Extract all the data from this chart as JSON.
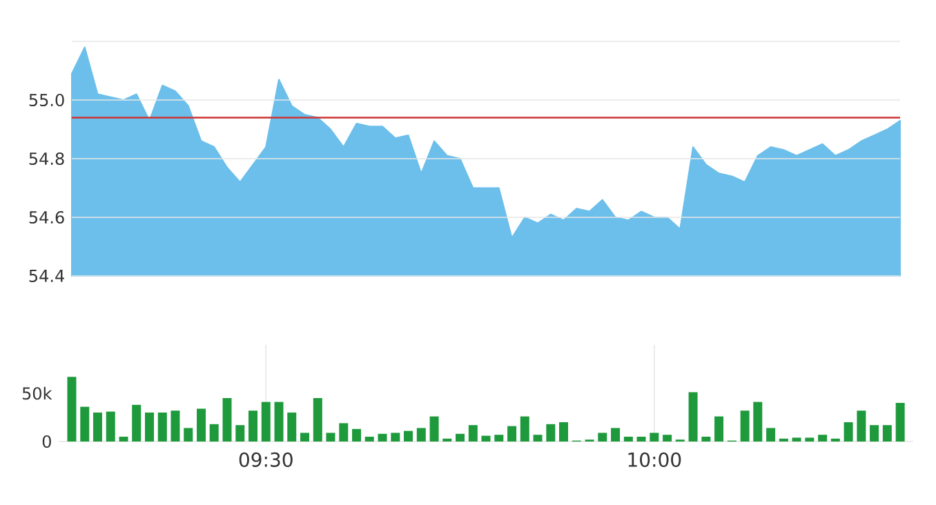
{
  "chart_data": [
    {
      "type": "area",
      "categories": [
        null,
        null,
        null,
        null,
        null,
        null,
        null,
        null,
        null,
        null,
        null,
        null,
        null,
        null,
        null,
        null,
        null,
        null,
        null,
        null,
        null,
        null,
        null,
        null,
        null,
        null,
        null,
        null,
        null,
        null,
        null,
        null,
        null,
        null,
        null,
        null,
        null,
        null,
        null,
        null,
        null,
        null,
        null,
        null,
        null,
        null,
        null,
        null,
        null,
        null,
        null,
        null,
        null,
        null,
        null,
        null,
        null,
        null,
        null,
        null,
        null,
        null,
        null,
        null,
        null
      ],
      "series": [
        {
          "color": "#6cbfeb",
          "values": [
            55.09,
            55.18,
            55.02,
            55.01,
            55.0,
            55.02,
            54.93,
            55.05,
            55.03,
            54.98,
            54.86,
            54.84,
            54.77,
            54.72,
            54.78,
            54.84,
            55.07,
            54.98,
            54.95,
            54.94,
            54.9,
            54.84,
            54.92,
            54.91,
            54.91,
            54.87,
            54.88,
            54.75,
            54.86,
            54.81,
            54.8,
            54.7,
            54.7,
            54.7,
            54.53,
            54.6,
            54.58,
            54.61,
            54.59,
            54.63,
            54.62,
            54.66,
            54.6,
            54.59,
            54.62,
            54.6,
            54.6,
            54.56,
            54.84,
            54.78,
            54.75,
            54.74,
            54.72,
            54.81,
            54.84,
            54.83,
            54.81,
            54.83,
            54.85,
            54.81,
            54.83,
            54.86,
            54.88,
            54.9,
            54.93
          ]
        }
      ],
      "ylim": [
        54.4,
        55.2
      ],
      "yticks": [
        54.4,
        54.6,
        54.8,
        {
          "value": 55,
          "label": "55.0"
        },
        {
          "value": 55.2,
          "label": null
        }
      ],
      "ref_lines": [
        {
          "axis": "y",
          "value": 54.94,
          "color": "#cc3333"
        }
      ],
      "grid": "y",
      "tick_labels": "y"
    },
    {
      "type": "bar",
      "x": [
        9.25,
        9.2667,
        9.2833,
        9.3,
        9.3167,
        9.3333,
        9.35,
        9.3667,
        9.3833,
        9.4,
        9.4167,
        9.4333,
        9.45,
        9.4667,
        9.4833,
        9.5,
        9.5167,
        9.5333,
        9.55,
        9.5667,
        9.5833,
        9.6,
        9.6167,
        9.6333,
        9.65,
        9.6667,
        9.6833,
        9.7,
        9.7167,
        9.7333,
        9.75,
        9.7667,
        9.7833,
        9.8,
        9.8167,
        9.8333,
        9.85,
        9.8667,
        9.8833,
        9.9,
        9.9167,
        9.9333,
        9.95,
        9.9667,
        9.9833,
        10,
        10.0167,
        10.0333,
        10.05,
        10.0667,
        10.0833,
        10.1,
        10.1167,
        10.1333,
        10.15,
        10.1667,
        10.1833,
        10.2,
        10.2167,
        10.2333,
        10.25,
        10.2667,
        10.2833,
        10.3,
        10.3167
      ],
      "series": [
        {
          "color": "#1e9a3c",
          "values": [
            67000,
            36000,
            30000,
            31000,
            5000,
            38000,
            30000,
            30000,
            32000,
            14000,
            34000,
            18000,
            45000,
            17000,
            32000,
            41000,
            41000,
            30000,
            9000,
            45000,
            9000,
            19000,
            13000,
            5000,
            8000,
            9000,
            11000,
            14000,
            26000,
            3000,
            8000,
            17000,
            6000,
            7000,
            16000,
            26000,
            7000,
            18000,
            20000,
            1000,
            2000,
            9000,
            14000,
            5000,
            5000,
            9000,
            7000,
            2000,
            51000,
            5000,
            26000,
            1000,
            32000,
            41000,
            14000,
            3000,
            4000,
            4000,
            7000,
            3000,
            20000,
            32000,
            17000,
            17000,
            40000
          ]
        }
      ],
      "xlim": [
        9.2333,
        10.3333
      ],
      "xticks": [
        {
          "value": 9.5,
          "label": "09:30"
        },
        {
          "value": 10,
          "label": "10:00"
        }
      ],
      "ylim": [
        0,
        100000
      ],
      "yticks": [
        0,
        {
          "value": 50000,
          "label": "50k"
        }
      ],
      "grid": "x"
    }
  ]
}
